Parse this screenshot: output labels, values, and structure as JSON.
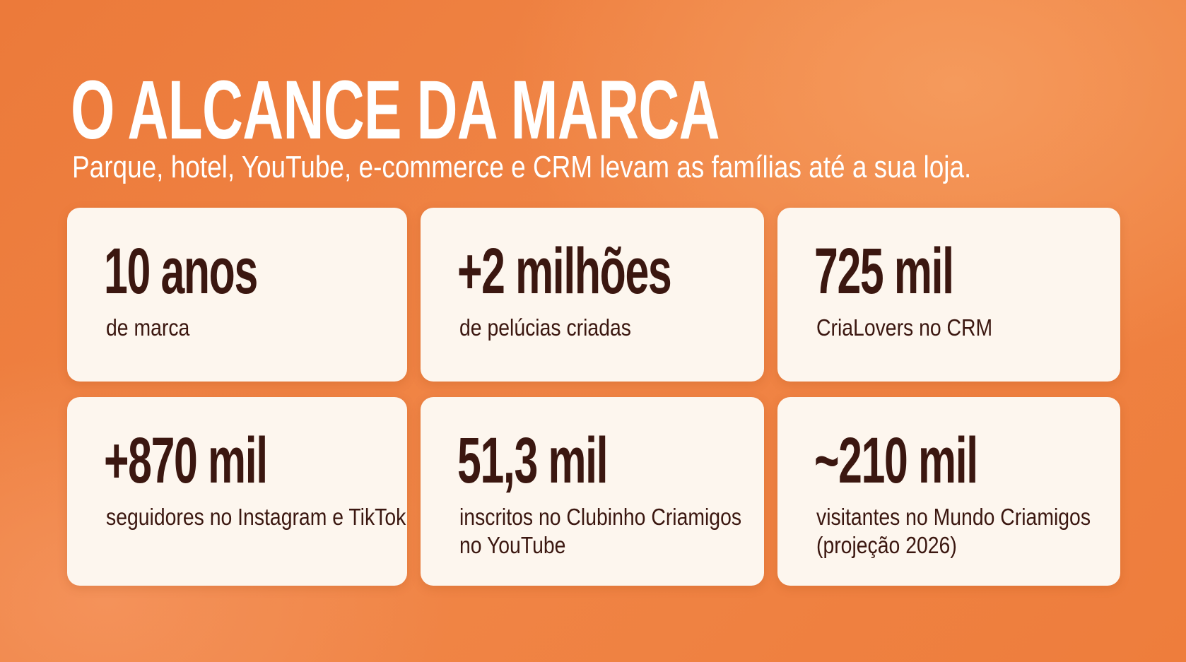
{
  "header": {
    "title": "O ALCANCE DA MARCA",
    "subtitle": "Parque, hotel, YouTube, e-commerce e CRM levam as famílias até a sua loja."
  },
  "cards": [
    {
      "value": "10 anos",
      "label_lines": [
        "de marca"
      ]
    },
    {
      "value": "+2 milhões",
      "label_lines": [
        "de pelúcias criadas"
      ]
    },
    {
      "value": "725 mil",
      "label_lines": [
        "CriaLovers no CRM"
      ]
    },
    {
      "value": "+870 mil",
      "label_lines": [
        "seguidores no Instagram e TikTok"
      ]
    },
    {
      "value": "51,3 mil",
      "label_lines": [
        "inscritos no Clubinho Criamigos",
        "no YouTube"
      ]
    },
    {
      "value": "~210 mil",
      "label_lines": [
        "visitantes no Mundo Criamigos",
        "(projeção 2026)"
      ]
    }
  ]
}
